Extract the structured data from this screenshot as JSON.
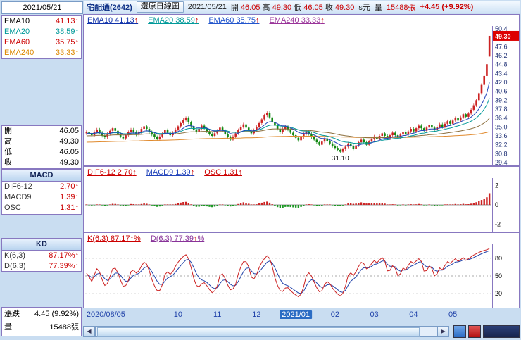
{
  "titlebar": {
    "date": "2021/05/21",
    "stock": "宅配通(2642)",
    "chart_type": "還原日線圖",
    "date2": "2021/05/21",
    "fields": [
      {
        "label": "開",
        "value": "46.05"
      },
      {
        "label": "高",
        "value": "49.30"
      },
      {
        "label": "低",
        "value": "46.05"
      },
      {
        "label": "收",
        "value": "49.30"
      }
    ],
    "unit": "s元",
    "volume_label": "量",
    "volume": "15488張",
    "change": "+4.45 (+9.92%)"
  },
  "sidebar": {
    "ema": [
      {
        "label": "EMA10",
        "value": "41.13",
        "arrow": "↑",
        "label_color": "#000000",
        "value_color": "#cc0000"
      },
      {
        "label": "EMA20",
        "value": "38.59",
        "arrow": "↑",
        "label_color": "#009999",
        "value_color": "#009999"
      },
      {
        "label": "EMA60",
        "value": "35.75",
        "arrow": "↑",
        "label_color": "#cc0000",
        "value_color": "#cc0000"
      },
      {
        "label": "EMA240",
        "value": "33.33",
        "arrow": "↑",
        "label_color": "#dd8800",
        "value_color": "#dd8800"
      }
    ],
    "ohlc": [
      {
        "label": "開",
        "value": "46.05"
      },
      {
        "label": "高",
        "value": "49.30"
      },
      {
        "label": "低",
        "value": "46.05"
      },
      {
        "label": "收",
        "value": "49.30"
      }
    ],
    "macd": {
      "title": "MACD",
      "rows": [
        {
          "label": "DIF6-12",
          "value": "2.70",
          "arrow": "↑"
        },
        {
          "label": "MACD9",
          "value": "1.39",
          "arrow": "↑"
        },
        {
          "label": "OSC",
          "value": "1.31",
          "arrow": "↑"
        }
      ]
    },
    "kd": {
      "title": "KD",
      "rows": [
        {
          "label": "K(6,3)",
          "value": "87.17%",
          "arrow": "↑"
        },
        {
          "label": "D(6,3)",
          "value": "77.39%",
          "arrow": "↑"
        }
      ]
    },
    "bottom": [
      {
        "label": "漲跌",
        "value": "4.45 (9.92%)"
      },
      {
        "label": "量",
        "value": "15488張"
      }
    ]
  },
  "main_header": [
    {
      "label": "EMA10",
      "value": "41.13",
      "arrow": "↑",
      "color": "#1133aa"
    },
    {
      "label": "EMA20",
      "value": "38.59",
      "arrow": "↑",
      "color": "#009999"
    },
    {
      "label": "EMA60",
      "value": "35.75",
      "arrow": "↑",
      "color": "#2255cc"
    },
    {
      "label": "EMA240",
      "value": "33.33",
      "arrow": "↑",
      "color": "#993399"
    }
  ],
  "macd_header": [
    {
      "label": "DIF6-12",
      "value": "2.70",
      "arrow": "↑",
      "color": "#cc0000"
    },
    {
      "label": "MACD9",
      "value": "1.39",
      "arrow": "↑",
      "color": "#2244bb"
    },
    {
      "label": "OSC",
      "value": "1.31",
      "arrow": "↑",
      "color": "#cc0000"
    }
  ],
  "kd_header": [
    {
      "label": "K(6,3)",
      "value": "87.17",
      "suffix": "%",
      "arrow": "↑",
      "color": "#cc0000"
    },
    {
      "label": "D(6,3)",
      "value": "77.39",
      "suffix": "%",
      "arrow": "↑",
      "color": "#883399"
    }
  ],
  "chart_data": {
    "type": "candlestick+indicators",
    "title": "宅配通(2642) 還原日線圖 2021/05/21",
    "price_marker": {
      "text": "49.30",
      "value": 49.3
    },
    "low_label": {
      "text": "31.10",
      "index": 97
    },
    "y_axis": {
      "min": 29.4,
      "max": 50.4,
      "step": 1.4
    },
    "macd_axis": {
      "min": -2.6,
      "max": 2.6,
      "ticks": [
        2,
        0,
        -2
      ]
    },
    "kd_axis": {
      "min": 0,
      "max": 100,
      "ticks": [
        80,
        50,
        20
      ]
    },
    "x_labels": [
      {
        "label": "2020/08/05",
        "index": 0,
        "highlight": false
      },
      {
        "label": "10",
        "index": 35,
        "highlight": false
      },
      {
        "label": "11",
        "index": 50,
        "highlight": false
      },
      {
        "label": "12",
        "index": 65,
        "highlight": false
      },
      {
        "label": "2021/01",
        "index": 80,
        "highlight": true
      },
      {
        "label": "02",
        "index": 95,
        "highlight": false
      },
      {
        "label": "03",
        "index": 110,
        "highlight": false
      },
      {
        "label": "04",
        "index": 125,
        "highlight": false
      },
      {
        "label": "05",
        "index": 140,
        "highlight": false
      }
    ],
    "close_series": [
      34.2,
      34.0,
      33.7,
      34.2,
      34.6,
      34.1,
      33.6,
      33.4,
      33.9,
      34.4,
      34.8,
      34.4,
      33.9,
      33.5,
      33.2,
      33.7,
      34.2,
      34.6,
      34.2,
      33.8,
      34.2,
      34.7,
      35.1,
      34.7,
      34.2,
      33.8,
      33.4,
      33.1,
      33.5,
      34.0,
      34.5,
      34.1,
      33.7,
      34.1,
      34.6,
      35.1,
      35.6,
      36.1,
      36.4,
      35.7,
      35.1,
      34.6,
      34.2,
      34.7,
      35.2,
      34.8,
      34.3,
      33.9,
      33.6,
      34.0,
      34.4,
      34.9,
      34.4,
      33.9,
      33.4,
      33.0,
      33.5,
      34.0,
      34.5,
      35.0,
      35.4,
      34.9,
      34.4,
      34.0,
      34.5,
      35.0,
      35.6,
      36.2,
      36.8,
      37.2,
      36.5,
      35.8,
      35.2,
      34.7,
      34.2,
      34.7,
      35.1,
      34.6,
      34.1,
      33.7,
      33.3,
      32.9,
      33.4,
      33.9,
      34.3,
      33.9,
      33.4,
      33.0,
      32.6,
      32.2,
      32.7,
      33.2,
      32.8,
      32.4,
      32.0,
      31.7,
      31.4,
      31.1,
      31.5,
      31.9,
      32.4,
      32.0,
      31.6,
      32.1,
      32.6,
      33.0,
      32.6,
      32.2,
      32.7,
      33.1,
      33.5,
      33.1,
      33.6,
      34.0,
      33.6,
      33.2,
      33.7,
      34.1,
      33.7,
      33.3,
      33.8,
      34.2,
      33.8,
      34.3,
      34.7,
      34.3,
      34.8,
      35.2,
      34.8,
      34.4,
      34.9,
      35.3,
      34.9,
      34.5,
      35.0,
      35.4,
      35.0,
      35.5,
      35.9,
      35.5,
      36.0,
      36.4,
      36.0,
      36.5,
      37.0,
      36.6,
      37.1,
      37.7,
      38.4,
      39.2,
      40.3,
      41.6,
      43.0,
      44.85,
      49.3
    ],
    "last_candle": {
      "open": 46.05,
      "high": 49.3,
      "low": 46.05,
      "close": 49.3
    },
    "ema_lines": [
      {
        "period": 10,
        "color": "#2244bb",
        "start": 34.0
      },
      {
        "period": 20,
        "color": "#009999",
        "start": 34.0
      },
      {
        "period": 60,
        "color": "#8a6d3b",
        "start": 33.6
      },
      {
        "period": 240,
        "color": "#e08a2e",
        "start": 32.6
      }
    ],
    "colors": {
      "up": "#cc2222",
      "down": "#118811",
      "osc_up": "#cc2222",
      "osc_down": "#1a9922",
      "k_line": "#cc2222",
      "d_line": "#2244aa",
      "axis": "#8878c0",
      "tick_text": "#223377"
    }
  },
  "scrollbar": {
    "left_arrow": "◀",
    "right_arrow": "▶"
  }
}
